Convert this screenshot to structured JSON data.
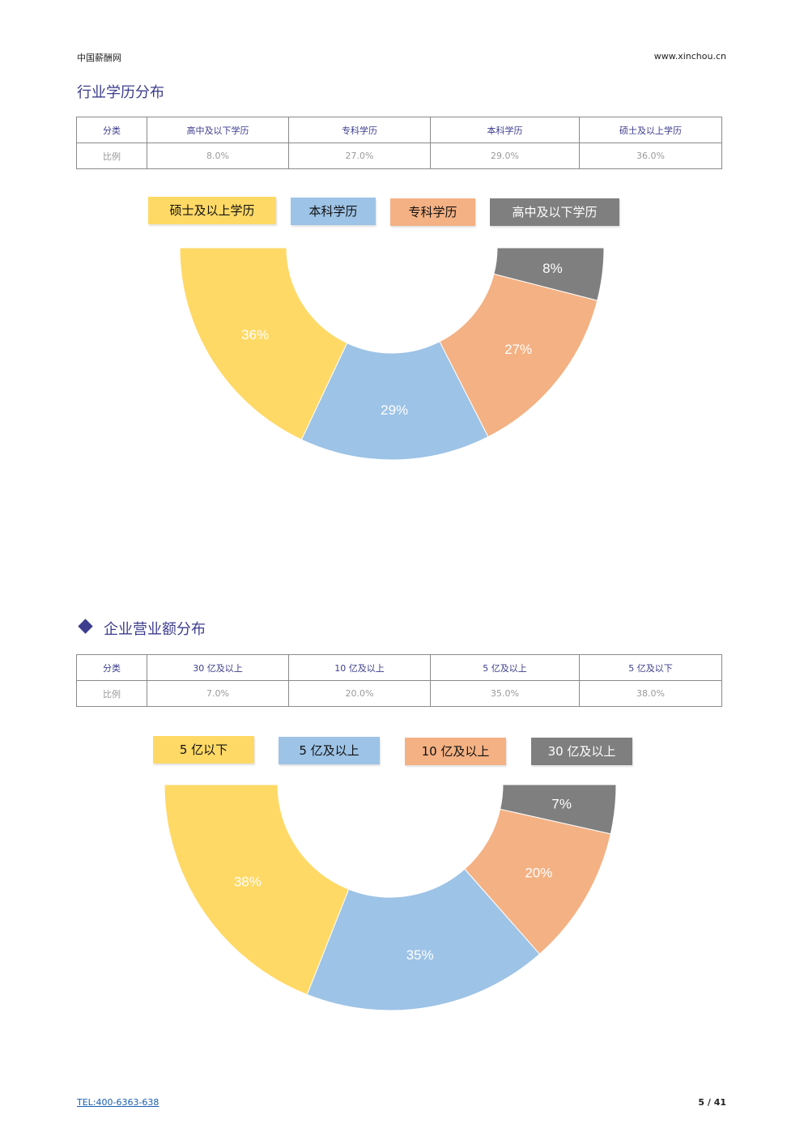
{
  "header": {
    "left": "中国薪酬网",
    "right": "www.xinchou.cn"
  },
  "section1": {
    "title": "行业学历分布",
    "table": {
      "headers": [
        "分类",
        "高中及以下学历",
        "专科学历",
        "本科学历",
        "硕士及以上学历"
      ],
      "row_label": "比例",
      "values": [
        "8.0%",
        "27.0%",
        "29.0%",
        "36.0%"
      ]
    },
    "legend": [
      {
        "label": "硕士及以上学历",
        "color": "#FFD966",
        "text_color": "#111111"
      },
      {
        "label": "本科学历",
        "color": "#9DC3E6",
        "text_color": "#111111"
      },
      {
        "label": "专科学历",
        "color": "#F4B183",
        "text_color": "#111111"
      },
      {
        "label": "高中及以下学历",
        "color": "#7F7F7F",
        "text_color": "#FFFFFF"
      }
    ]
  },
  "section2": {
    "title": "企业营业额分布",
    "table": {
      "headers": [
        "分类",
        "30 亿及以上",
        "10 亿及以上",
        "5 亿及以上",
        "5 亿及以下"
      ],
      "row_label": "比例",
      "values": [
        "7.0%",
        "20.0%",
        "35.0%",
        "38.0%"
      ]
    },
    "legend": [
      {
        "label": "5 亿以下",
        "color": "#FFD966",
        "text_color": "#111111"
      },
      {
        "label": "5 亿及以上",
        "color": "#9DC3E6",
        "text_color": "#111111"
      },
      {
        "label": "10 亿及以上",
        "color": "#F4B183",
        "text_color": "#111111"
      },
      {
        "label": "30 亿及以上",
        "color": "#7F7F7F",
        "text_color": "#FFFFFF"
      }
    ]
  },
  "chart_data": [
    {
      "type": "pie",
      "variant": "half-donut",
      "labels": [
        "硕士及以上学历",
        "本科学历",
        "专科学历",
        "高中及以下学历"
      ],
      "values": [
        36,
        29,
        27,
        8
      ],
      "data_labels": [
        "36%",
        "29%",
        "27%",
        "8%"
      ],
      "colors": [
        "#FFD966",
        "#9DC3E6",
        "#F4B183",
        "#7F7F7F"
      ],
      "legend_position": "top"
    },
    {
      "type": "pie",
      "variant": "half-donut",
      "labels": [
        "5 亿以下",
        "5 亿及以上",
        "10 亿及以上",
        "30 亿及以上"
      ],
      "values": [
        38,
        35,
        20,
        7
      ],
      "data_labels": [
        "38%",
        "35%",
        "20%",
        "7%"
      ],
      "colors": [
        "#FFD966",
        "#9DC3E6",
        "#F4B183",
        "#7F7F7F"
      ],
      "legend_position": "top"
    }
  ],
  "footer": {
    "tel": "TEL:400-6363-638",
    "page": "5 / 41"
  }
}
